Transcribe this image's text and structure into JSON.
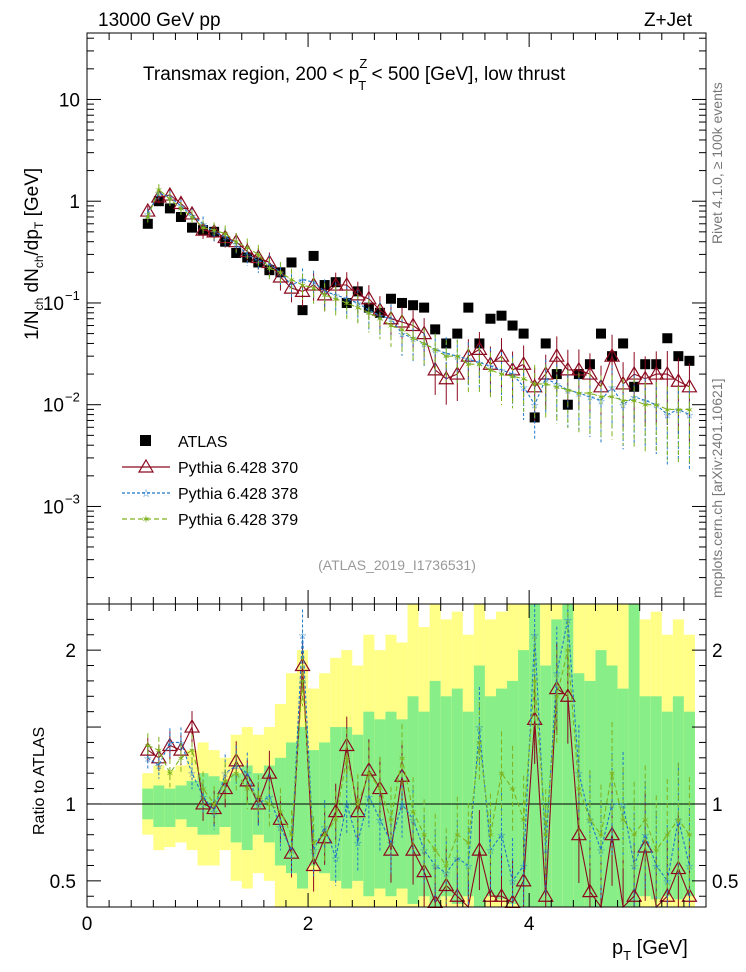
{
  "header": {
    "energy_label": "13000 GeV pp",
    "process_label": "Z+Jet"
  },
  "title": {
    "prefix": "Transmax region, 200 < p",
    "sup": "Z",
    "sub": "T",
    "suffix": " < 500 [GeV], low thrust"
  },
  "side": {
    "rivet": "Rivet 4.1.0, ≥ 100k events",
    "mcplots": "mcplots.cern.ch [arXiv:2401.10621]"
  },
  "analysis_id": "(ATLAS_2019_I1736531)",
  "axes": {
    "ylabel_top": {
      "a": "1/N",
      "b": "ch",
      "c": " dN",
      "d": "ch",
      "e": "/dp",
      "f": "T",
      "g": " [GeV]"
    },
    "ylabel_ratio": "Ratio to ATLAS",
    "xlabel": {
      "a": "p",
      "b": "T",
      "c": " [GeV]"
    },
    "x_ticks": [
      "0",
      "2",
      "4"
    ],
    "y_ticks_top": [
      {
        "value": 10,
        "base": "10",
        "exp": ""
      },
      {
        "value": 1,
        "base": "1",
        "exp": ""
      },
      {
        "value": 0.1,
        "base": "10",
        "exp": "−1"
      },
      {
        "value": 0.01,
        "base": "10",
        "exp": "−2"
      },
      {
        "value": 0.001,
        "base": "10",
        "exp": "−3"
      }
    ],
    "y_ticks_ratio": [
      "2",
      "1",
      "0.5"
    ]
  },
  "legend": {
    "atlas": "ATLAS",
    "py370": "Pythia 6.428 370",
    "py378": "Pythia 6.428 378",
    "py379": "Pythia 6.428 379"
  },
  "colors": {
    "atlas": "#000000",
    "py370": "#8b0a1e",
    "py378": "#1f78c8",
    "py379": "#7fb21e",
    "band_2sigma": "#ffff88",
    "band_1sigma": "#88ee88"
  },
  "chart_data": {
    "type": "scatter",
    "title": "Transmax region, 200 < pT^Z < 500 [GeV], low thrust",
    "xlabel": "pT [GeV]",
    "ylabel": "1/Nch dNch/dpT [GeV]",
    "ylabel_ratio": "Ratio to ATLAS",
    "xlim": [
      0,
      5.6
    ],
    "ylim": [
      0.00011,
      45
    ],
    "ylim_ratio": [
      0.33,
      2.3
    ],
    "yscale": "log",
    "x": [
      0.55,
      0.65,
      0.75,
      0.85,
      0.95,
      1.05,
      1.15,
      1.25,
      1.35,
      1.45,
      1.55,
      1.65,
      1.75,
      1.85,
      1.95,
      2.05,
      2.15,
      2.25,
      2.35,
      2.45,
      2.55,
      2.65,
      2.75,
      2.85,
      2.95,
      3.05,
      3.15,
      3.25,
      3.35,
      3.45,
      3.55,
      3.65,
      3.75,
      3.85,
      3.95,
      4.05,
      4.15,
      4.25,
      4.35,
      4.45,
      4.55,
      4.65,
      4.75,
      4.85,
      4.95,
      5.05,
      5.15,
      5.25,
      5.35,
      5.45
    ],
    "series": [
      {
        "name": "ATLAS",
        "values": [
          0.6,
          1.0,
          0.85,
          0.7,
          0.55,
          0.52,
          0.5,
          0.4,
          0.31,
          0.28,
          0.25,
          0.21,
          0.2,
          0.25,
          0.085,
          0.29,
          0.15,
          0.16,
          0.1,
          0.13,
          0.09,
          0.08,
          0.11,
          0.1,
          0.095,
          0.09,
          0.055,
          0.04,
          0.05,
          0.09,
          0.04,
          0.07,
          0.075,
          0.06,
          0.05,
          0.0075,
          0.04,
          0.02,
          0.01,
          0.02,
          0.025,
          0.05,
          0.03,
          0.04,
          0.015,
          0.025,
          0.025,
          0.045,
          0.03,
          0.027
        ]
      },
      {
        "name": "Pythia 6.428 370",
        "values": [
          0.8,
          1.1,
          1.15,
          0.95,
          0.75,
          0.52,
          0.5,
          0.44,
          0.4,
          0.32,
          0.28,
          0.25,
          0.18,
          0.14,
          0.13,
          0.15,
          0.12,
          0.15,
          0.15,
          0.12,
          0.11,
          0.085,
          0.07,
          0.065,
          0.06,
          0.05,
          0.022,
          0.018,
          0.02,
          0.03,
          0.035,
          0.025,
          0.03,
          0.022,
          0.025,
          0.015,
          0.02,
          0.03,
          0.022,
          0.022,
          0.02,
          0.015,
          0.03,
          0.016,
          0.02,
          0.018,
          0.02,
          0.02,
          0.017,
          0.015
        ],
        "ratio": [
          1.35,
          1.3,
          1.38,
          1.35,
          1.5,
          1.0,
          0.97,
          1.1,
          1.28,
          1.15,
          1.0,
          1.2,
          0.9,
          0.68,
          1.9,
          0.6,
          0.78,
          0.95,
          1.38,
          0.95,
          1.22,
          1.1,
          0.7,
          1.18,
          0.7,
          0.56,
          0.36,
          0.47,
          0.4,
          0.33,
          0.7,
          0.4,
          0.4,
          0.36,
          0.5,
          1.55,
          0.4,
          1.75,
          1.7,
          0.8,
          0.43,
          0.3,
          0.8,
          0.3,
          0.4,
          0.72,
          0.3,
          0.4,
          0.58,
          0.4
        ]
      },
      {
        "name": "Pythia 6.428 378",
        "values": [
          0.75,
          1.2,
          1.1,
          0.9,
          0.72,
          0.6,
          0.5,
          0.45,
          0.38,
          0.3,
          0.26,
          0.24,
          0.2,
          0.15,
          0.17,
          0.16,
          0.13,
          0.12,
          0.11,
          0.1,
          0.085,
          0.075,
          0.07,
          0.05,
          0.045,
          0.04,
          0.035,
          0.032,
          0.03,
          0.028,
          0.026,
          0.024,
          0.022,
          0.02,
          0.015,
          0.01,
          0.018,
          0.016,
          0.014,
          0.013,
          0.012,
          0.011,
          0.015,
          0.01,
          0.012,
          0.011,
          0.01,
          0.008,
          0.009,
          0.008
        ],
        "ratio": [
          1.3,
          1.25,
          1.4,
          1.4,
          1.2,
          1.05,
          0.95,
          1.2,
          1.25,
          1.2,
          1.0,
          1.05,
          0.85,
          0.7,
          2.1,
          0.7,
          0.85,
          0.65,
          1.0,
          0.75,
          1.05,
          0.9,
          0.75,
          1.0,
          0.9,
          0.7,
          0.6,
          0.55,
          0.65,
          0.6,
          1.5,
          0.7,
          0.8,
          0.5,
          0.6,
          2.1,
          0.7,
          1.85,
          2.2,
          1.2,
          0.9,
          0.7,
          1.0,
          1.0,
          0.6,
          0.8,
          0.6,
          0.5,
          0.9,
          0.6
        ]
      },
      {
        "name": "Pythia 6.428 379",
        "values": [
          0.7,
          1.3,
          1.05,
          0.85,
          0.7,
          0.55,
          0.52,
          0.48,
          0.4,
          0.35,
          0.3,
          0.22,
          0.2,
          0.17,
          0.15,
          0.14,
          0.12,
          0.11,
          0.1,
          0.09,
          0.08,
          0.07,
          0.06,
          0.055,
          0.045,
          0.04,
          0.035,
          0.03,
          0.03,
          0.025,
          0.025,
          0.022,
          0.02,
          0.019,
          0.018,
          0.016,
          0.016,
          0.015,
          0.014,
          0.013,
          0.013,
          0.012,
          0.012,
          0.011,
          0.011,
          0.01,
          0.01,
          0.009,
          0.009,
          0.009
        ],
        "ratio": [
          1.38,
          1.35,
          1.2,
          1.3,
          1.35,
          1.1,
          1.0,
          1.15,
          1.2,
          1.1,
          1.05,
          1.0,
          0.95,
          0.8,
          1.8,
          0.75,
          0.8,
          0.9,
          1.3,
          1.0,
          1.2,
          1.1,
          0.9,
          1.3,
          0.95,
          0.8,
          0.7,
          0.6,
          0.8,
          0.75,
          1.4,
          0.8,
          1.2,
          1.1,
          0.9,
          1.8,
          0.8,
          1.7,
          2.0,
          1.1,
          0.9,
          0.8,
          1.2,
          0.9,
          0.8,
          0.9,
          0.7,
          0.8,
          0.9,
          0.8
        ]
      }
    ],
    "ratio_band_1sigma": [
      [
        0.9,
        1.1
      ],
      [
        0.85,
        1.12
      ],
      [
        0.85,
        1.1
      ],
      [
        0.9,
        1.12
      ],
      [
        0.85,
        1.15
      ],
      [
        0.8,
        1.2
      ],
      [
        0.8,
        1.18
      ],
      [
        0.85,
        1.15
      ],
      [
        0.75,
        1.2
      ],
      [
        0.7,
        1.25
      ],
      [
        0.8,
        1.2
      ],
      [
        0.75,
        1.25
      ],
      [
        0.6,
        1.3
      ],
      [
        0.55,
        1.4
      ],
      [
        0.45,
        1.5
      ],
      [
        0.6,
        1.35
      ],
      [
        0.55,
        1.4
      ],
      [
        0.5,
        1.5
      ],
      [
        0.45,
        1.5
      ],
      [
        0.5,
        1.45
      ],
      [
        0.4,
        1.6
      ],
      [
        0.45,
        1.55
      ],
      [
        0.4,
        1.6
      ],
      [
        0.45,
        1.55
      ],
      [
        0.35,
        1.7
      ],
      [
        0.4,
        1.6
      ],
      [
        0.33,
        1.8
      ],
      [
        0.4,
        1.7
      ],
      [
        0.35,
        1.75
      ],
      [
        0.4,
        1.6
      ],
      [
        0.33,
        1.9
      ],
      [
        0.4,
        1.7
      ],
      [
        0.38,
        1.75
      ],
      [
        0.35,
        1.8
      ],
      [
        0.33,
        2.0
      ],
      [
        0.33,
        2.3
      ],
      [
        0.33,
        1.9
      ],
      [
        0.33,
        2.2
      ],
      [
        0.33,
        2.3
      ],
      [
        0.33,
        1.85
      ],
      [
        0.33,
        1.8
      ],
      [
        0.33,
        2.0
      ],
      [
        0.33,
        1.9
      ],
      [
        0.33,
        1.75
      ],
      [
        0.33,
        2.3
      ],
      [
        0.4,
        1.7
      ],
      [
        0.38,
        1.7
      ],
      [
        0.4,
        1.6
      ],
      [
        0.38,
        1.7
      ],
      [
        0.4,
        1.6
      ]
    ],
    "ratio_band_2sigma": [
      [
        0.8,
        1.2
      ],
      [
        0.7,
        1.25
      ],
      [
        0.72,
        1.22
      ],
      [
        0.75,
        1.25
      ],
      [
        0.7,
        1.35
      ],
      [
        0.6,
        1.4
      ],
      [
        0.6,
        1.35
      ],
      [
        0.7,
        1.3
      ],
      [
        0.5,
        1.45
      ],
      [
        0.45,
        1.5
      ],
      [
        0.55,
        1.45
      ],
      [
        0.5,
        1.5
      ],
      [
        0.33,
        1.65
      ],
      [
        0.33,
        1.85
      ],
      [
        0.33,
        2.0
      ],
      [
        0.33,
        1.75
      ],
      [
        0.33,
        1.85
      ],
      [
        0.33,
        1.95
      ],
      [
        0.33,
        2.0
      ],
      [
        0.33,
        1.9
      ],
      [
        0.33,
        2.1
      ],
      [
        0.33,
        2.0
      ],
      [
        0.33,
        2.1
      ],
      [
        0.33,
        2.05
      ],
      [
        0.33,
        2.3
      ],
      [
        0.33,
        2.15
      ],
      [
        0.33,
        2.3
      ],
      [
        0.33,
        2.2
      ],
      [
        0.33,
        2.25
      ],
      [
        0.33,
        2.1
      ],
      [
        0.33,
        2.3
      ],
      [
        0.33,
        2.2
      ],
      [
        0.33,
        2.25
      ],
      [
        0.33,
        2.3
      ],
      [
        0.33,
        2.3
      ],
      [
        0.33,
        2.3
      ],
      [
        0.33,
        2.3
      ],
      [
        0.33,
        2.3
      ],
      [
        0.33,
        2.3
      ],
      [
        0.33,
        2.3
      ],
      [
        0.33,
        2.3
      ],
      [
        0.33,
        2.3
      ],
      [
        0.33,
        2.3
      ],
      [
        0.33,
        2.3
      ],
      [
        0.33,
        2.3
      ],
      [
        0.33,
        2.2
      ],
      [
        0.33,
        2.25
      ],
      [
        0.33,
        2.1
      ],
      [
        0.33,
        2.2
      ],
      [
        0.33,
        2.1
      ]
    ]
  }
}
